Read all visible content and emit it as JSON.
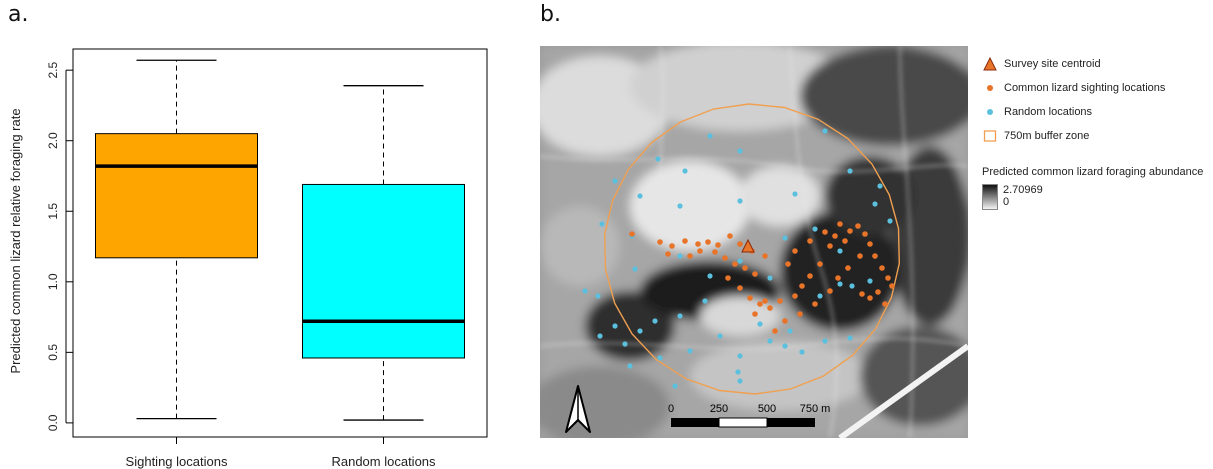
{
  "panel_labels": {
    "a": "a.",
    "b": "b."
  },
  "chart_data": [
    {
      "type": "boxplot",
      "ylabel": "Predicted common lizard relative foraging rate",
      "xlabel": "",
      "ylim": [
        -0.1,
        2.65
      ],
      "yticks": [
        "0.0",
        "0.5",
        "1.0",
        "1.5",
        "2.0",
        "2.5"
      ],
      "categories": [
        "Sighting locations",
        "Random locations"
      ],
      "boxes": [
        {
          "name": "Sighting locations",
          "min": 0.03,
          "q1": 1.17,
          "median": 1.82,
          "q3": 2.05,
          "max": 2.57,
          "color": "#FFA500"
        },
        {
          "name": "Random locations",
          "min": 0.02,
          "q1": 0.46,
          "median": 0.72,
          "q3": 1.69,
          "max": 2.39,
          "color": "#00FFFF"
        }
      ]
    },
    {
      "type": "map",
      "scale_bar": {
        "labels": [
          "0",
          "250",
          "500",
          "750 m"
        ]
      },
      "north_arrow": "north-arrow-icon",
      "legend": [
        {
          "label": "Survey site centroid",
          "symbol": "triangle",
          "color": "#E8742A"
        },
        {
          "label": "Common lizard sighting locations",
          "symbol": "dot",
          "color": "#E8742A"
        },
        {
          "label": "Random locations",
          "symbol": "dot",
          "color": "#5BC0DE"
        },
        {
          "label": "750m buffer zone",
          "symbol": "square-outline",
          "color": "#F0A050"
        }
      ],
      "raster_legend": {
        "title": "Predicted common lizard foraging abundance",
        "max": "2.70969",
        "min": "0"
      }
    }
  ]
}
